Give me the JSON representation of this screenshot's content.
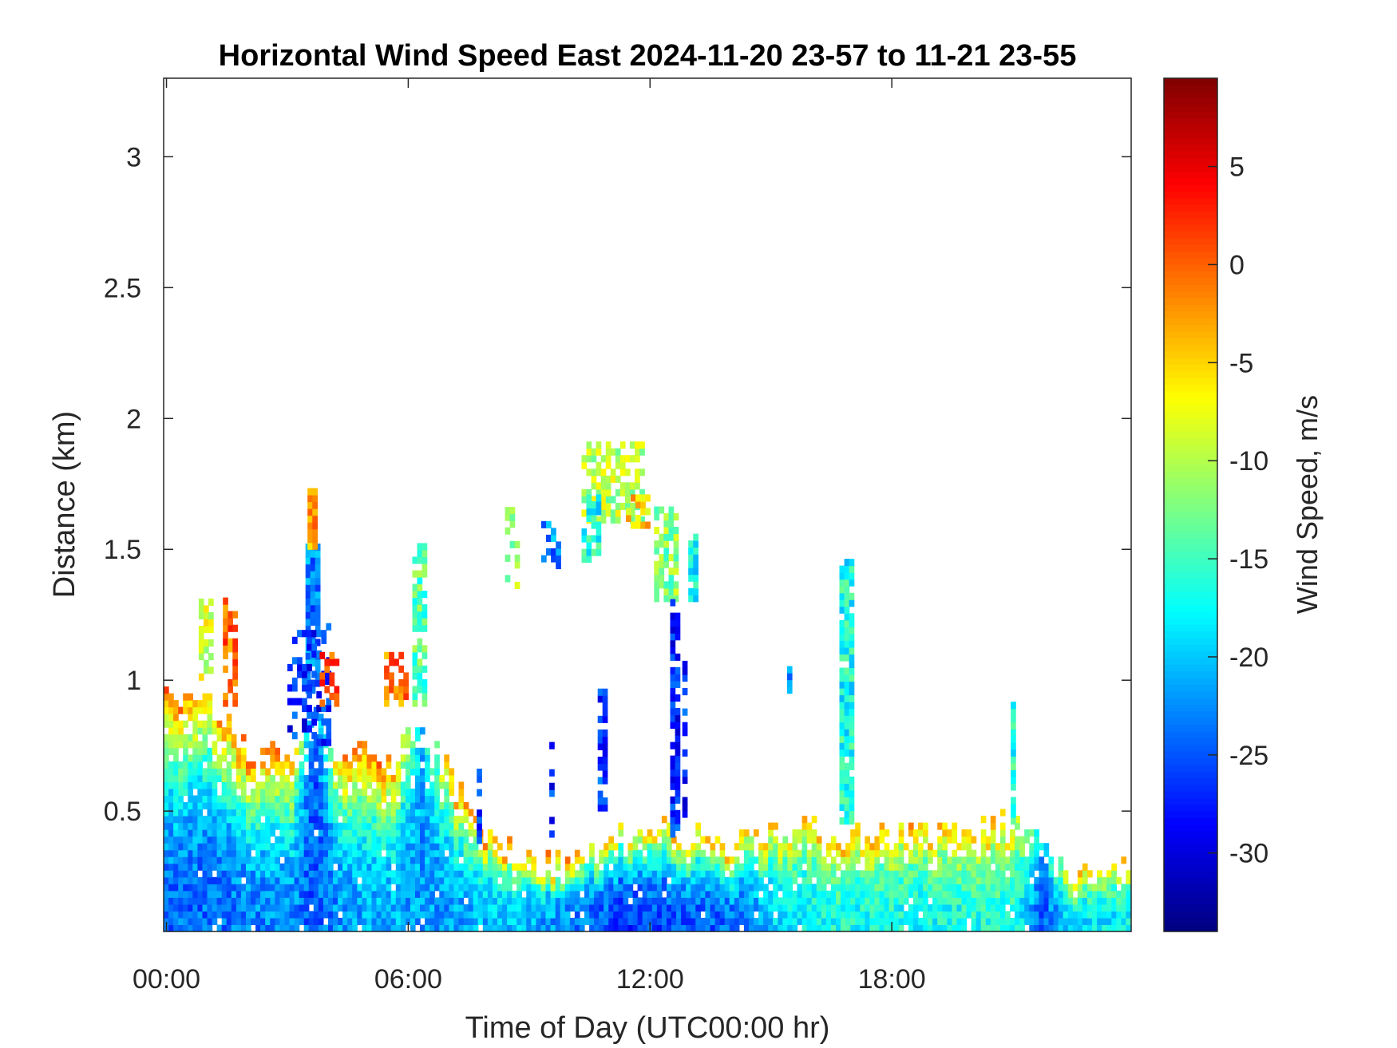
{
  "chart_data": {
    "type": "heatmap",
    "title": "Horizontal Wind Speed East 2024-11-20 23-57 to 11-21 23-55",
    "xlabel": "Time of Day (UTC00:00 hr)",
    "ylabel": "Distance (km)",
    "colorbar_label": "Wind Speed, m/s",
    "colormap": "jet",
    "xlim_hours": [
      -0.07,
      23.94
    ],
    "ylim_km": [
      0.04,
      3.3
    ],
    "clim": [
      -34,
      9.5
    ],
    "x_ticks": [
      {
        "value": 0,
        "label": "00:00"
      },
      {
        "value": 6,
        "label": "06:00"
      },
      {
        "value": 12,
        "label": "12:00"
      },
      {
        "value": 18,
        "label": "18:00"
      }
    ],
    "y_ticks": [
      {
        "value": 0.5,
        "label": "0.5"
      },
      {
        "value": 1,
        "label": "1"
      },
      {
        "value": 1.5,
        "label": "1.5"
      },
      {
        "value": 2,
        "label": "2"
      },
      {
        "value": 2.5,
        "label": "2.5"
      },
      {
        "value": 3,
        "label": "3"
      }
    ],
    "c_ticks": [
      {
        "value": 5,
        "label": "5"
      },
      {
        "value": 0,
        "label": "0"
      },
      {
        "value": -5,
        "label": "-5"
      },
      {
        "value": -10,
        "label": "-10"
      },
      {
        "value": -15,
        "label": "-15"
      },
      {
        "value": -20,
        "label": "-20"
      },
      {
        "value": -25,
        "label": "-25"
      },
      {
        "value": -30,
        "label": "-30"
      }
    ],
    "time_step_hours": 0.12,
    "range_gate_km": 0.026,
    "boundary_layer_profile": [
      {
        "t": 0,
        "top_km": 0.95,
        "bottom_value": -24,
        "top_value": 1
      },
      {
        "t": 1,
        "top_km": 0.9,
        "bottom_value": -24,
        "top_value": -4
      },
      {
        "t": 2,
        "top_km": 0.7,
        "bottom_value": -23,
        "top_value": 0
      },
      {
        "t": 3,
        "top_km": 0.68,
        "bottom_value": -22,
        "top_value": 0
      },
      {
        "t": 3.6,
        "top_km": 0.9,
        "bottom_value": -25,
        "top_value": -26
      },
      {
        "t": 4.3,
        "top_km": 0.68,
        "bottom_value": -22,
        "top_value": 0
      },
      {
        "t": 5.5,
        "top_km": 0.7,
        "bottom_value": -21,
        "top_value": 0
      },
      {
        "t": 6.3,
        "top_km": 0.8,
        "bottom_value": -22,
        "top_value": -20
      },
      {
        "t": 7,
        "top_km": 0.62,
        "bottom_value": -22,
        "top_value": -2
      },
      {
        "t": 7.6,
        "top_km": 0.42,
        "bottom_value": -21,
        "top_value": -2
      },
      {
        "t": 8.5,
        "top_km": 0.32,
        "bottom_value": -20,
        "top_value": 0
      },
      {
        "t": 10,
        "top_km": 0.3,
        "bottom_value": -23,
        "top_value": -2
      },
      {
        "t": 11.3,
        "top_km": 0.38,
        "bottom_value": -26,
        "top_value": -6
      },
      {
        "t": 12.5,
        "top_km": 0.42,
        "bottom_value": -25,
        "top_value": -4
      },
      {
        "t": 14,
        "top_km": 0.36,
        "bottom_value": -24,
        "top_value": -2
      },
      {
        "t": 15.2,
        "top_km": 0.42,
        "bottom_value": -19,
        "top_value": -6
      },
      {
        "t": 16.5,
        "top_km": 0.4,
        "bottom_value": -17,
        "top_value": -3
      },
      {
        "t": 18,
        "top_km": 0.4,
        "bottom_value": -17,
        "top_value": -4
      },
      {
        "t": 19.5,
        "top_km": 0.4,
        "bottom_value": -17,
        "top_value": -3
      },
      {
        "t": 21,
        "top_km": 0.45,
        "bottom_value": -16,
        "top_value": -4
      },
      {
        "t": 21.7,
        "top_km": 0.38,
        "bottom_value": -25,
        "top_value": -20
      },
      {
        "t": 22.3,
        "top_km": 0.26,
        "bottom_value": -19,
        "top_value": -3
      },
      {
        "t": 24,
        "top_km": 0.28,
        "bottom_value": -18,
        "top_value": -5
      }
    ],
    "plumes": [
      {
        "t": [
          0.8,
          1.1
        ],
        "z": [
          1.0,
          1.3
        ],
        "value": -8,
        "density": 0.6
      },
      {
        "t": [
          1.4,
          1.65
        ],
        "z": [
          0.9,
          1.3
        ],
        "value": 0,
        "density": 0.6
      },
      {
        "t": [
          3.45,
          3.7
        ],
        "z": [
          0.95,
          1.5
        ],
        "value": -23,
        "density": 0.9
      },
      {
        "t": [
          3.5,
          3.7
        ],
        "z": [
          1.5,
          1.72
        ],
        "value": -2,
        "density": 0.9
      },
      {
        "t": [
          3.0,
          4.0
        ],
        "z": [
          0.75,
          1.2
        ],
        "value": -27,
        "density": 0.45
      },
      {
        "t": [
          3.8,
          4.2
        ],
        "z": [
          0.9,
          1.1
        ],
        "value": 1,
        "density": 0.5
      },
      {
        "t": [
          5.4,
          6.0
        ],
        "z": [
          0.9,
          1.1
        ],
        "value": -1,
        "density": 0.7
      },
      {
        "t": [
          6.1,
          6.4
        ],
        "z": [
          0.9,
          1.5
        ],
        "value": -14,
        "density": 0.7
      },
      {
        "t": [
          8.4,
          8.7
        ],
        "z": [
          1.35,
          1.65
        ],
        "value": -11,
        "density": 0.5
      },
      {
        "t": [
          9.3,
          9.7
        ],
        "z": [
          1.4,
          1.62
        ],
        "value": -23,
        "density": 0.4
      },
      {
        "t": [
          10.3,
          11.8
        ],
        "z": [
          1.6,
          1.9
        ],
        "value": -10,
        "density": 0.6
      },
      {
        "t": [
          10.3,
          10.7
        ],
        "z": [
          1.45,
          1.7
        ],
        "value": -17,
        "density": 0.6
      },
      {
        "t": [
          11.4,
          11.9
        ],
        "z": [
          1.58,
          1.7
        ],
        "value": -5,
        "density": 0.6
      },
      {
        "t": [
          12.1,
          12.6
        ],
        "z": [
          1.3,
          1.65
        ],
        "value": -12,
        "density": 0.7
      },
      {
        "t": [
          12.5,
          12.65
        ],
        "z": [
          0.4,
          1.3
        ],
        "value": -27,
        "density": 0.8
      },
      {
        "t": [
          12.8,
          12.92
        ],
        "z": [
          0.45,
          1.05
        ],
        "value": -27,
        "density": 0.6
      },
      {
        "t": [
          12.95,
          13.1
        ],
        "z": [
          1.3,
          1.55
        ],
        "value": -18,
        "density": 0.8
      },
      {
        "t": [
          10.7,
          10.82
        ],
        "z": [
          0.5,
          0.95
        ],
        "value": -26,
        "density": 0.8
      },
      {
        "t": [
          9.5,
          9.62
        ],
        "z": [
          0.4,
          0.8
        ],
        "value": -27,
        "density": 0.5
      },
      {
        "t": [
          7.7,
          7.82
        ],
        "z": [
          0.35,
          0.7
        ],
        "value": -26,
        "density": 0.5
      },
      {
        "t": [
          15.4,
          15.52
        ],
        "z": [
          0.95,
          1.05
        ],
        "value": -24,
        "density": 1.0
      },
      {
        "t": [
          16.7,
          16.95
        ],
        "z": [
          0.45,
          1.45
        ],
        "value": -17,
        "density": 0.9
      },
      {
        "t": [
          20.95,
          21.07
        ],
        "z": [
          0.45,
          0.9
        ],
        "value": -16,
        "density": 0.9
      }
    ]
  }
}
